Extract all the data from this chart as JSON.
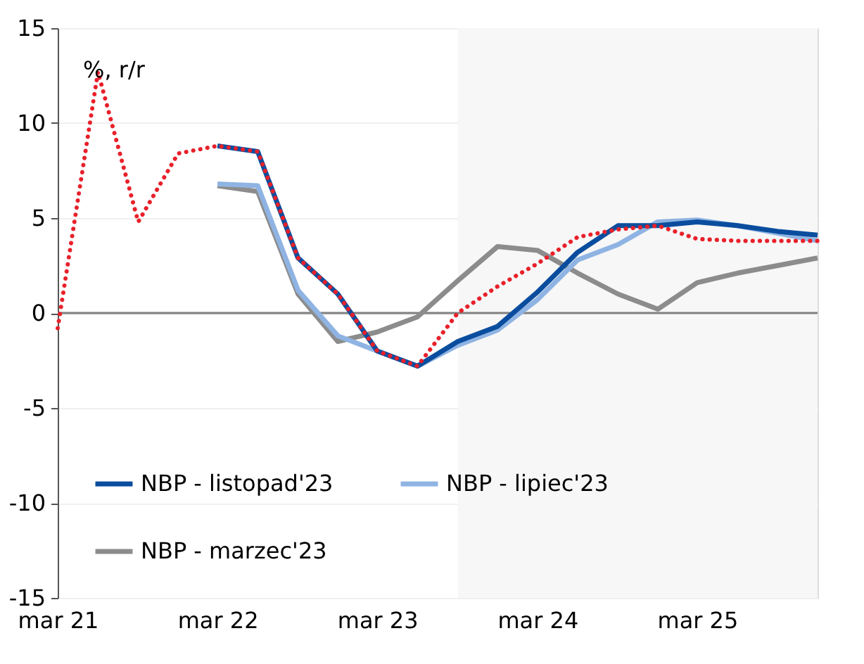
{
  "chart_data": {
    "type": "line",
    "annotations": [
      "%, r/r"
    ],
    "x": [
      "2021-03",
      "2021-06",
      "2021-09",
      "2021-12",
      "2022-03",
      "2022-06",
      "2022-09",
      "2022-12",
      "2023-03",
      "2023-06",
      "2023-09",
      "2023-12",
      "2024-03",
      "2024-06",
      "2024-09",
      "2024-12",
      "2025-03",
      "2025-06",
      "2025-09",
      "2025-12"
    ],
    "series": [
      {
        "name": "NBP - listopad'23",
        "color": "#0a4d9e",
        "values": [
          null,
          null,
          null,
          null,
          8.8,
          8.5,
          2.9,
          1.0,
          -2.0,
          -2.8,
          -1.5,
          -0.7,
          1.1,
          3.2,
          4.6,
          4.6,
          4.8,
          4.6,
          4.3,
          4.1
        ]
      },
      {
        "name": "NBP - lipiec'23",
        "color": "#8fb4e3",
        "values": [
          null,
          null,
          null,
          null,
          6.8,
          6.7,
          1.2,
          -1.2,
          -2.0,
          -2.8,
          -1.7,
          -0.9,
          0.7,
          2.8,
          3.6,
          4.8,
          4.9,
          4.6,
          4.2,
          3.8
        ]
      },
      {
        "name": "NBP - marzec'23",
        "color": "#8c8c8c",
        "values": [
          null,
          null,
          null,
          null,
          6.7,
          6.4,
          1.0,
          -1.5,
          -1.0,
          -0.2,
          1.7,
          3.5,
          3.3,
          2.1,
          1.0,
          0.2,
          1.6,
          2.1,
          2.5,
          2.9
        ]
      },
      {
        "color": "#e8202a",
        "line_style": "dotted",
        "values": [
          -0.8,
          12.7,
          4.8,
          8.4,
          8.8,
          8.5,
          2.9,
          1.0,
          -2.0,
          -2.8,
          0.0,
          1.4,
          2.6,
          4.0,
          4.4,
          4.6,
          3.9,
          3.8,
          3.8,
          3.8
        ]
      }
    ],
    "xlim": [
      "2021-03",
      "2025-12"
    ],
    "xticks": [
      {
        "value": "2021-03",
        "label": "mar 21"
      },
      {
        "value": "2022-03",
        "label": "mar 22"
      },
      {
        "value": "2023-03",
        "label": "mar 23"
      },
      {
        "value": "2024-03",
        "label": "mar 24"
      },
      {
        "value": "2025-03",
        "label": "mar 25"
      }
    ],
    "ylim": [
      -15,
      15
    ],
    "yticks": [
      -15,
      -10,
      -5,
      0,
      5,
      10,
      15
    ],
    "grid": "y",
    "legend": "bottom",
    "ref_lines": [
      {
        "axis": "y",
        "value": 0,
        "color": "#808080"
      }
    ],
    "bands": [
      {
        "axis": "x",
        "from": "2023-09",
        "to": "2025-12",
        "color": "#f7f7f7"
      }
    ]
  }
}
